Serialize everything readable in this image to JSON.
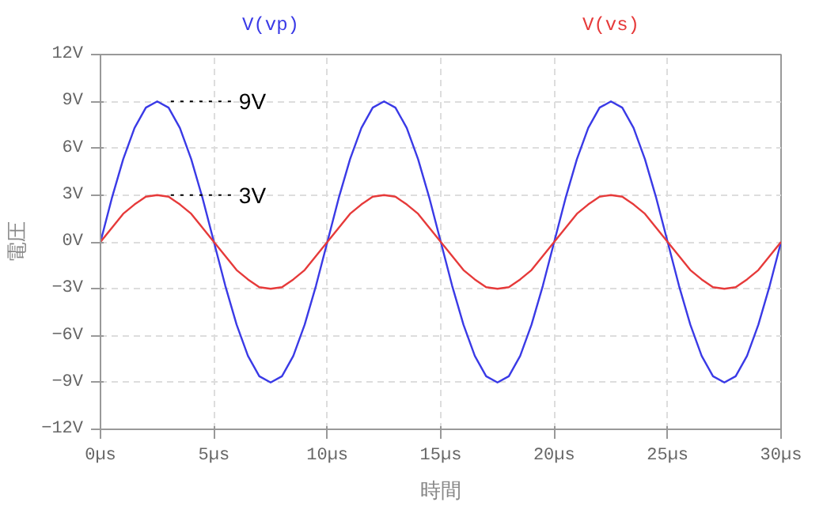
{
  "chart_data": {
    "type": "line",
    "xlabel": "時間",
    "ylabel": "電圧",
    "x": [
      0,
      0.5,
      1,
      1.5,
      2,
      2.5,
      3,
      3.5,
      4,
      4.5,
      5,
      5.5,
      6,
      6.5,
      7,
      7.5,
      8,
      8.5,
      9,
      9.5,
      10,
      10.5,
      11,
      11.5,
      12,
      12.5,
      13,
      13.5,
      14,
      14.5,
      15,
      15.5,
      16,
      16.5,
      17,
      17.5,
      18,
      18.5,
      19,
      19.5,
      20,
      20.5,
      21,
      21.5,
      22,
      22.5,
      23,
      23.5,
      24,
      24.5,
      25,
      25.5,
      26,
      26.5,
      27,
      27.5,
      28,
      28.5,
      29,
      29.5,
      30
    ],
    "series": [
      {
        "name": "V(vp)",
        "color": "#3a3ae6",
        "values": [
          0,
          2.8,
          5.3,
          7.3,
          8.6,
          9,
          8.6,
          7.3,
          5.3,
          2.8,
          0,
          -2.8,
          -5.3,
          -7.3,
          -8.6,
          -9,
          -8.6,
          -7.3,
          -5.3,
          -2.8,
          0,
          2.8,
          5.3,
          7.3,
          8.6,
          9,
          8.6,
          7.3,
          5.3,
          2.8,
          0,
          -2.8,
          -5.3,
          -7.3,
          -8.6,
          -9,
          -8.6,
          -7.3,
          -5.3,
          -2.8,
          0,
          2.8,
          5.3,
          7.3,
          8.6,
          9,
          8.6,
          7.3,
          5.3,
          2.8,
          0,
          -2.8,
          -5.3,
          -7.3,
          -8.6,
          -9,
          -8.6,
          -7.3,
          -5.3,
          -2.8,
          0
        ]
      },
      {
        "name": "V(vs)",
        "color": "#e63a3a",
        "values": [
          0,
          0.9,
          1.8,
          2.4,
          2.9,
          3,
          2.9,
          2.4,
          1.8,
          0.9,
          0,
          -0.9,
          -1.8,
          -2.4,
          -2.9,
          -3,
          -2.9,
          -2.4,
          -1.8,
          -0.9,
          0,
          0.9,
          1.8,
          2.4,
          2.9,
          3,
          2.9,
          2.4,
          1.8,
          0.9,
          0,
          -0.9,
          -1.8,
          -2.4,
          -2.9,
          -3,
          -2.9,
          -2.4,
          -1.8,
          -0.9,
          0,
          0.9,
          1.8,
          2.4,
          2.9,
          3,
          2.9,
          2.4,
          1.8,
          0.9,
          0,
          -0.9,
          -1.8,
          -2.4,
          -2.9,
          -3,
          -2.9,
          -2.4,
          -1.8,
          -0.9,
          0
        ]
      }
    ],
    "annotations": [
      {
        "text": "9V",
        "x": 2.5,
        "y": 9
      },
      {
        "text": "3V",
        "x": 2.5,
        "y": 3
      }
    ],
    "xlim": [
      0,
      30
    ],
    "ylim": [
      -12,
      12
    ],
    "xticks": [
      {
        "value": 0,
        "label": "0µs"
      },
      {
        "value": 5,
        "label": "5µs"
      },
      {
        "value": 10,
        "label": "10µs"
      },
      {
        "value": 15,
        "label": "15µs"
      },
      {
        "value": 20,
        "label": "20µs"
      },
      {
        "value": 25,
        "label": "25µs"
      },
      {
        "value": 30,
        "label": "30µs"
      }
    ],
    "yticks": [
      {
        "value": -12,
        "label": "−12V"
      },
      {
        "value": -9,
        "label": "−9V"
      },
      {
        "value": -6,
        "label": "−6V"
      },
      {
        "value": -3,
        "label": "−3V"
      },
      {
        "value": 0,
        "label": "0V"
      },
      {
        "value": 3,
        "label": "3V"
      },
      {
        "value": 6,
        "label": "6V"
      },
      {
        "value": 9,
        "label": "9V"
      },
      {
        "value": 12,
        "label": "12V"
      }
    ],
    "grid": true,
    "line_style": "solid"
  }
}
